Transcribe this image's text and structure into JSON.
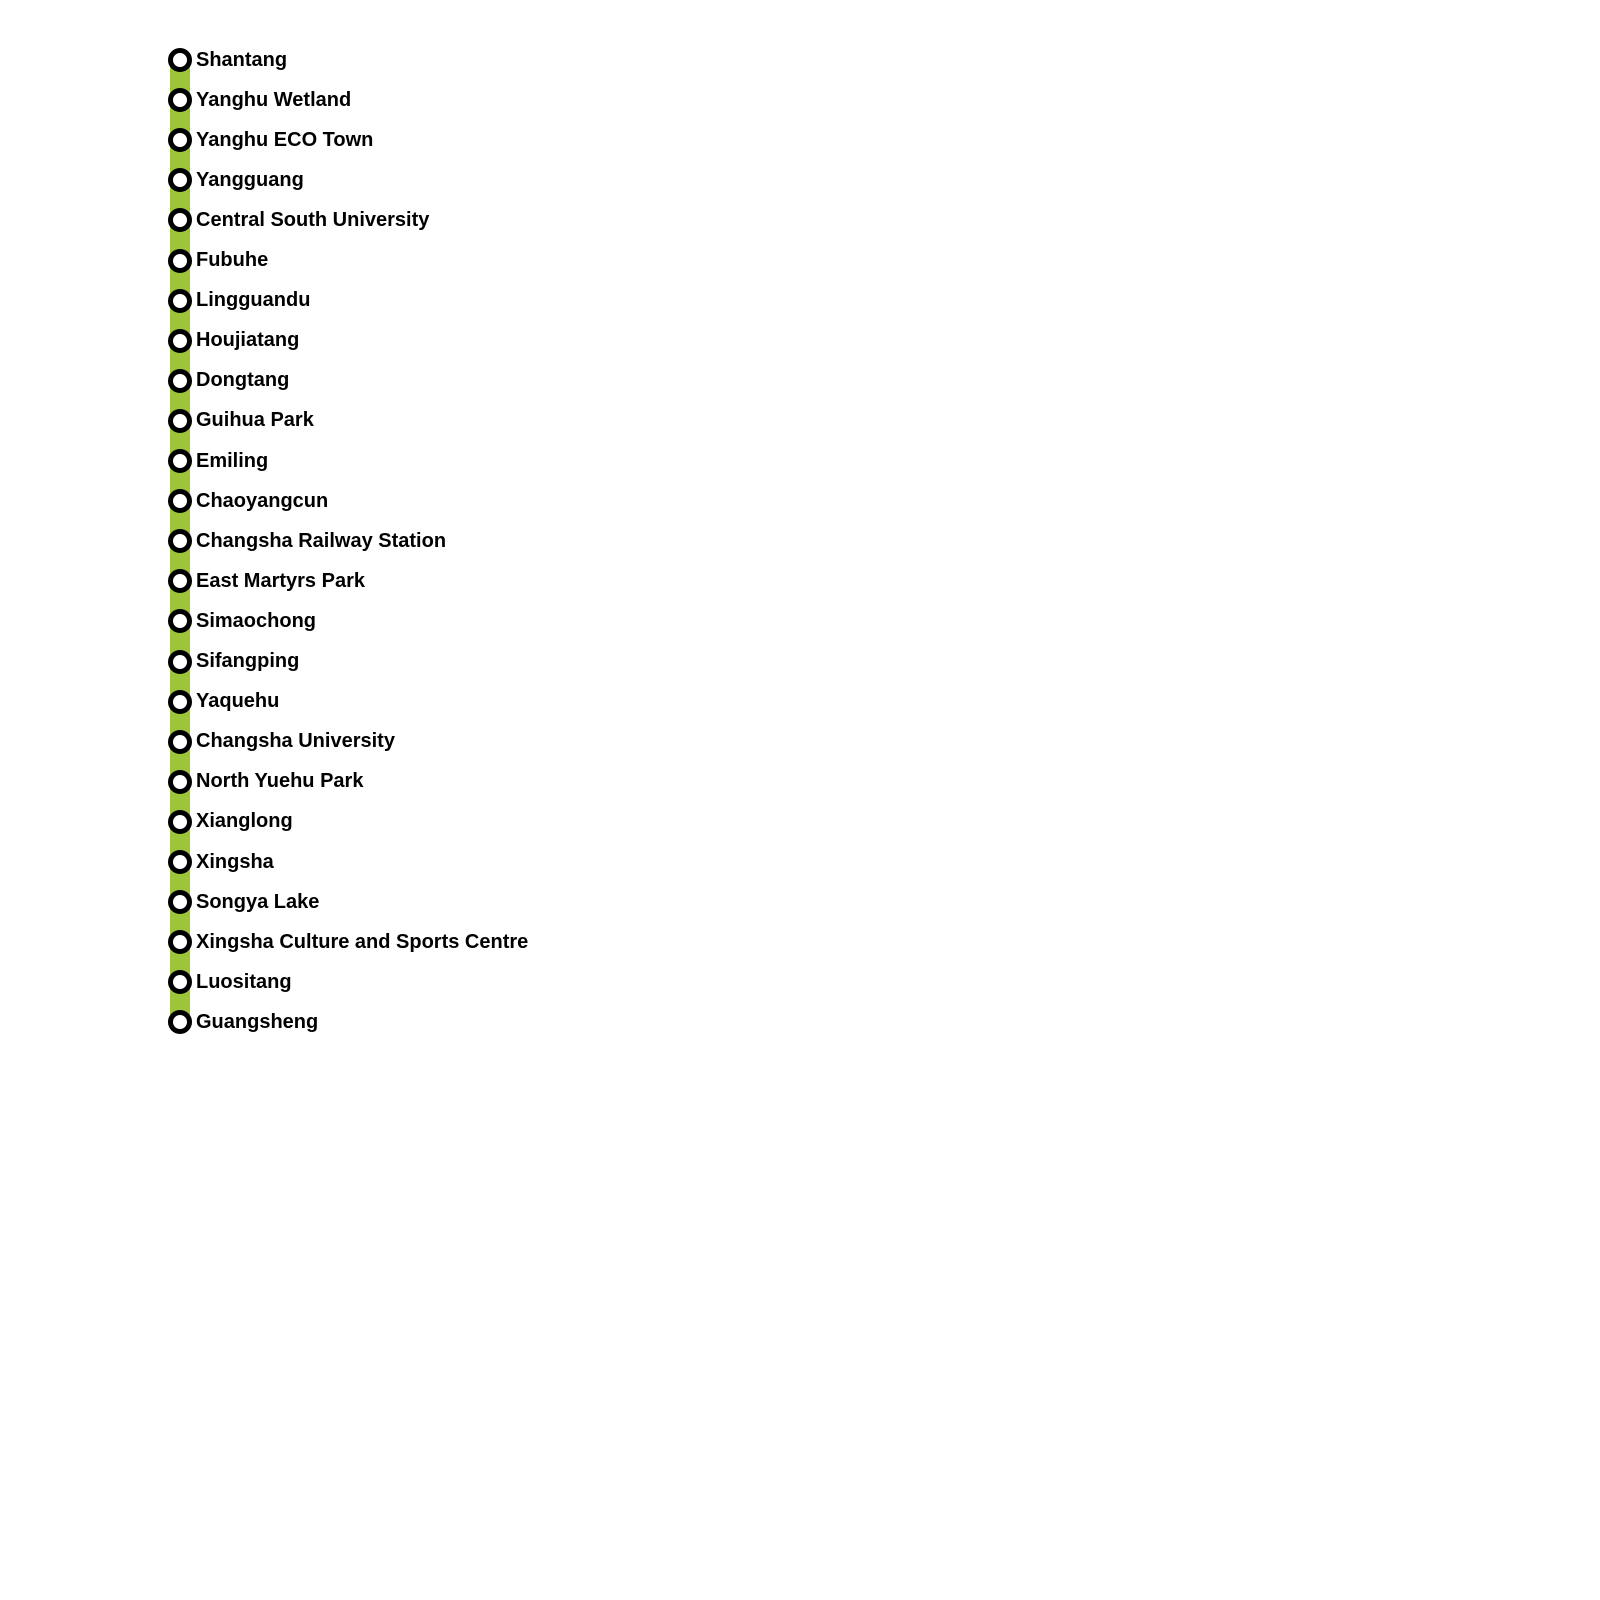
{
  "line_color": "#9ec43a",
  "stations": [
    "Shantang",
    "Yanghu Wetland",
    "Yanghu ECO Town",
    "Yangguang",
    "Central South University",
    "Fubuhe",
    "Lingguandu",
    "Houjiatang",
    "Dongtang",
    "Guihua Park",
    "Emiling",
    "Chaoyangcun",
    "Changsha Railway Station",
    "East Martyrs Park",
    "Simaochong",
    "Sifangping",
    "Yaquehu",
    "Changsha University",
    "North Yuehu Park",
    "Xianglong",
    "Xingsha",
    "Songya Lake",
    "Xingsha Culture and Sports Centre",
    "Luositang",
    "Guangsheng"
  ]
}
